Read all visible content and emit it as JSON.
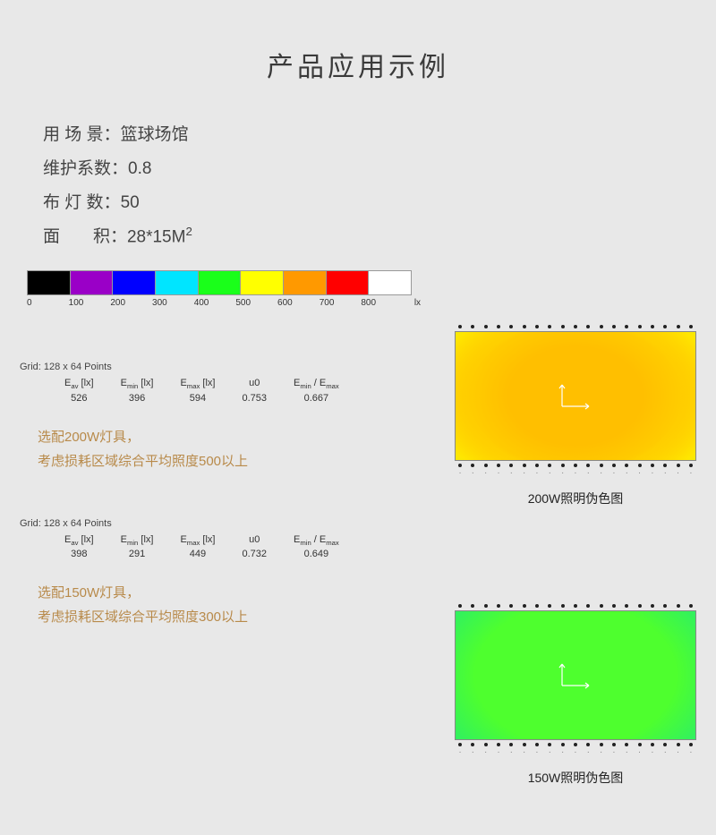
{
  "title": "产品应用示例",
  "specs": {
    "scene_label": "用 场 景：",
    "scene_value": "篮球场馆",
    "maint_label": "维护系数：",
    "maint_value": "0.8",
    "lights_label": "布 灯 数：",
    "lights_value": "50",
    "area_label": "面       积：",
    "area_value": "28*15M",
    "area_sup": "2"
  },
  "color_scale": {
    "colors": [
      "#000000",
      "#9a00c7",
      "#0000ff",
      "#00e5ff",
      "#1aff1a",
      "#ffff00",
      "#ff9900",
      "#ff0000",
      "#ffffff"
    ],
    "ticks": [
      "0",
      "100",
      "200",
      "300",
      "400",
      "500",
      "600",
      "700",
      "800"
    ],
    "unit": "lx"
  },
  "section200": {
    "grid_line": "Grid: 128 x 64 Points",
    "stats": {
      "headers": {
        "eav": "E",
        "eav_sub": "av",
        "unit": " [lx]",
        "emin": "E",
        "emin_sub": "min",
        "emax": "E",
        "emax_sub": "max",
        "u0": "u0",
        "ratio_a": "E",
        "ratio_asub": "min",
        "ratio_sep": " / E",
        "ratio_bsub": "max"
      },
      "vals": {
        "eav": "526",
        "emin": "396",
        "emax": "594",
        "u0": "0.753",
        "ratio": "0.667"
      }
    },
    "note_l1": "选配200W灯具，",
    "note_l2": "考虑损耗区域综合平均照度500以上",
    "caption": "200W照明伪色图"
  },
  "section150": {
    "grid_line": "Grid: 128 x 64 Points",
    "stats": {
      "vals": {
        "eav": "398",
        "emin": "291",
        "emax": "449",
        "u0": "0.732",
        "ratio": "0.649"
      }
    },
    "note_l1": "选配150W灯具，",
    "note_l2": "考虑损耗区域综合平均照度300以上",
    "caption": "150W照明伪色图"
  },
  "dots_count": 19,
  "ticks_count": 19
}
